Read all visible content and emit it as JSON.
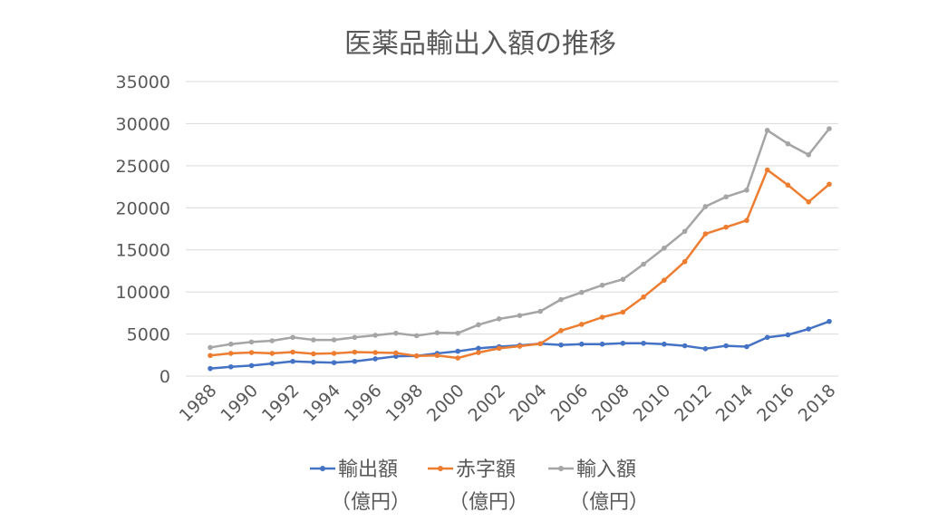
{
  "chart_data": {
    "type": "line",
    "title": "医薬品輸出入額の推移",
    "xlabel": "",
    "ylabel": "",
    "ylim": [
      0,
      35000
    ],
    "yticks": [
      0,
      5000,
      10000,
      15000,
      20000,
      25000,
      30000,
      35000
    ],
    "x": [
      1988,
      1989,
      1990,
      1991,
      1992,
      1993,
      1994,
      1995,
      1996,
      1997,
      1998,
      1999,
      2000,
      2001,
      2002,
      2003,
      2004,
      2005,
      2006,
      2007,
      2008,
      2009,
      2010,
      2011,
      2012,
      2013,
      2014,
      2015,
      2016,
      2017,
      2018
    ],
    "xticks": [
      "1988",
      "1990",
      "1992",
      "1994",
      "1996",
      "1998",
      "2000",
      "2002",
      "2004",
      "2006",
      "2008",
      "2010",
      "2012",
      "2014",
      "2016",
      "2018"
    ],
    "grid": true,
    "legend_position": "bottom",
    "series": [
      {
        "name": "輸出額",
        "unit": "（億円）",
        "color": "#4472c4",
        "values": [
          900,
          1100,
          1250,
          1500,
          1750,
          1650,
          1600,
          1750,
          2050,
          2350,
          2400,
          2700,
          2950,
          3300,
          3500,
          3650,
          3850,
          3700,
          3800,
          3800,
          3900,
          3900,
          3800,
          3600,
          3250,
          3600,
          3500,
          4600,
          4900,
          5600,
          6500
        ]
      },
      {
        "name": "赤字額",
        "unit": "（億円）",
        "color": "#ed7d31",
        "values": [
          2450,
          2700,
          2800,
          2700,
          2850,
          2650,
          2700,
          2850,
          2800,
          2750,
          2400,
          2450,
          2150,
          2800,
          3300,
          3550,
          3850,
          5400,
          6150,
          7000,
          7600,
          9400,
          11400,
          13600,
          16900,
          17700,
          18500,
          24500,
          22700,
          20700,
          22800
        ]
      },
      {
        "name": "輸入額",
        "unit": "（億円）",
        "color": "#a5a5a5",
        "values": [
          3400,
          3800,
          4050,
          4200,
          4600,
          4300,
          4300,
          4600,
          4850,
          5100,
          4800,
          5150,
          5100,
          6100,
          6800,
          7200,
          7700,
          9100,
          9950,
          10800,
          11500,
          13300,
          15200,
          17200,
          20150,
          21300,
          22100,
          29200,
          27600,
          26300,
          29400
        ]
      }
    ]
  }
}
